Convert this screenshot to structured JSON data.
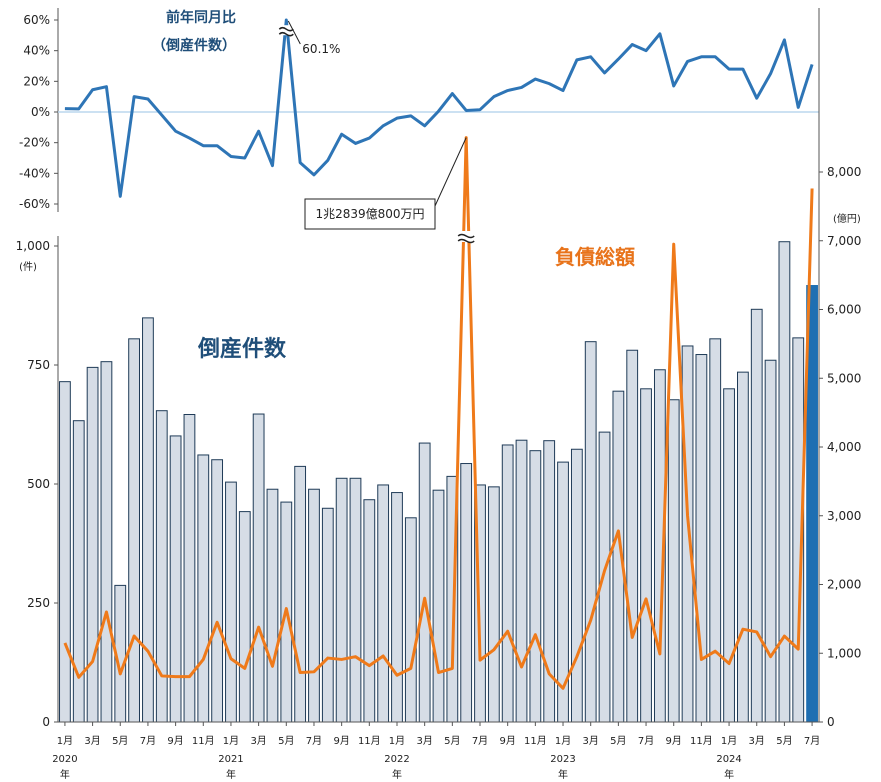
{
  "colors": {
    "bar": "#d6dde6",
    "bar_stroke": "#1f3b57",
    "bar_last": "#1f6fb2",
    "line_top": "#2e75b6",
    "line_debt": "#ef7a1a",
    "zero_line": "#bcd7ee"
  },
  "chart_data": [
    {
      "type": "line",
      "title": "前年同月比",
      "subtitle": "（倒産件数）",
      "yticks": [
        "60%",
        "40%",
        "20%",
        "0%",
        "-20%",
        "-40%",
        "-60%"
      ],
      "ylim": [
        -60,
        60
      ],
      "unit": "%",
      "annotation": "60.1%",
      "values": [
        2.2,
        2.0,
        14.5,
        16.5,
        -55.0,
        10.0,
        8.5,
        -2.0,
        -12.5,
        -17.0,
        -22.0,
        -22.0,
        -29.0,
        -30.0,
        -12.5,
        -35.0,
        60.1,
        -33.0,
        -41.0,
        -31.5,
        -14.5,
        -20.5,
        -17.0,
        -9.0,
        -4.0,
        -2.5,
        -9.0,
        0.5,
        12.0,
        1.0,
        1.5,
        10.0,
        14.0,
        16.0,
        21.5,
        18.5,
        14.0,
        34.0,
        36.0,
        25.5,
        34.5,
        44.0,
        40.0,
        51.0,
        17.0,
        33.0,
        36.0,
        36.0,
        28.0,
        28.0,
        9.0,
        25.0,
        47.0,
        3.0,
        31.0
      ]
    },
    {
      "type": "bar",
      "series_label": "倒産件数",
      "ylabel_unit": "(件)",
      "yticks": [
        "1,000",
        "750",
        "500",
        "250",
        "0"
      ],
      "ylim": [
        0,
        1000
      ],
      "values": [
        715,
        633,
        745,
        757,
        287,
        805,
        849,
        654,
        601,
        646,
        561,
        551,
        504,
        442,
        647,
        489,
        462,
        537,
        489,
        449,
        512,
        512,
        467,
        498,
        482,
        429,
        586,
        487,
        516,
        543,
        498,
        494,
        582,
        592,
        570,
        591,
        546,
        573,
        799,
        609,
        695,
        781,
        700,
        740,
        677,
        790,
        772,
        805,
        700,
        735,
        867,
        760,
        1009,
        807,
        917
      ]
    },
    {
      "type": "line",
      "series_label": "負債総額",
      "y2label_unit": "(億円)",
      "y2ticks": [
        "8,000",
        "7,000",
        "6,000",
        "5,000",
        "4,000",
        "3,000",
        "2,000",
        "1,000",
        "0"
      ],
      "ylim": [
        0,
        8000
      ],
      "annotation": "1兆2839億800万円",
      "values": [
        1150,
        650,
        880,
        1600,
        700,
        1250,
        1030,
        670,
        660,
        660,
        910,
        1450,
        920,
        780,
        1380,
        810,
        1650,
        720,
        730,
        930,
        910,
        950,
        820,
        960,
        680,
        780,
        1800,
        720,
        780,
        12839,
        900,
        1050,
        1320,
        800,
        1270,
        700,
        490,
        950,
        1480,
        2200,
        2780,
        1230,
        1790,
        990,
        6950,
        3000,
        910,
        1030,
        850,
        1350,
        1310,
        950,
        1250,
        1060,
        7760
      ]
    }
  ],
  "x_axis": {
    "months": [
      "1月",
      "",
      "3月",
      "",
      "5月",
      "",
      "7月",
      "",
      "9月",
      "",
      "11月",
      "",
      "1月",
      "",
      "3月",
      "",
      "5月",
      "",
      "7月",
      "",
      "9月",
      "",
      "11月",
      "",
      "1月",
      "",
      "3月",
      "",
      "5月",
      "",
      "7月",
      "",
      "9月",
      "",
      "11月",
      "",
      "1月",
      "",
      "3月",
      "",
      "5月",
      "",
      "7月",
      "",
      "9月",
      "",
      "11月",
      "",
      "1月",
      "",
      "3月",
      "",
      "5月",
      "",
      "7月"
    ],
    "years": [
      "2020",
      "2021",
      "2022",
      "2023",
      "2024"
    ],
    "year_suffix": "年"
  }
}
